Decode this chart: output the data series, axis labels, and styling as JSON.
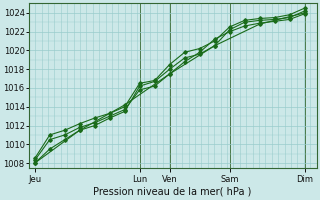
{
  "xlabel": "Pression niveau de la mer( hPa )",
  "ylim": [
    1007.5,
    1025.0
  ],
  "yticks": [
    1008,
    1010,
    1012,
    1014,
    1016,
    1018,
    1020,
    1022,
    1024
  ],
  "background_color": "#cce8e8",
  "grid_color": "#99cccc",
  "line_color": "#1a6b1a",
  "dark_line_color": "#2d5a27",
  "x_labels": [
    "Jeu",
    "Lun",
    "Ven",
    "Sam",
    "Dim"
  ],
  "x_positions": [
    0,
    35,
    45,
    65,
    90
  ],
  "xlim": [
    -2,
    94
  ],
  "vline_positions": [
    35,
    45,
    65,
    90
  ],
  "lines": [
    {
      "x": [
        0,
        5,
        10,
        15,
        20,
        25,
        30,
        35,
        40,
        45,
        50,
        55,
        60,
        65,
        70,
        75,
        80,
        85,
        90
      ],
      "y": [
        1008.0,
        1009.5,
        1010.5,
        1011.5,
        1012.0,
        1012.8,
        1013.5,
        1016.2,
        1016.7,
        1018.0,
        1019.2,
        1019.6,
        1020.5,
        1022.2,
        1023.0,
        1023.2,
        1023.3,
        1023.5,
        1024.2
      ]
    },
    {
      "x": [
        0,
        5,
        10,
        15,
        20,
        25,
        30,
        35,
        40,
        45,
        50,
        55,
        60,
        65,
        70,
        75,
        80,
        85,
        90
      ],
      "y": [
        1008.3,
        1010.5,
        1011.0,
        1011.8,
        1012.3,
        1013.0,
        1013.7,
        1015.8,
        1016.2,
        1017.5,
        1018.8,
        1019.8,
        1021.2,
        1022.0,
        1022.6,
        1022.9,
        1023.1,
        1023.3,
        1023.9
      ]
    },
    {
      "x": [
        0,
        5,
        10,
        15,
        20,
        25,
        30,
        35,
        40,
        45,
        50,
        55,
        60,
        65,
        70,
        75,
        80,
        85,
        90
      ],
      "y": [
        1008.5,
        1011.0,
        1011.5,
        1012.2,
        1012.8,
        1013.3,
        1014.0,
        1016.5,
        1016.8,
        1018.5,
        1019.8,
        1020.2,
        1021.0,
        1022.5,
        1023.2,
        1023.4,
        1023.5,
        1023.8,
        1024.5
      ]
    },
    {
      "x": [
        0,
        15,
        30,
        45,
        60,
        75,
        90
      ],
      "y": [
        1008.0,
        1011.5,
        1014.2,
        1017.5,
        1020.5,
        1022.8,
        1024.0
      ]
    }
  ]
}
